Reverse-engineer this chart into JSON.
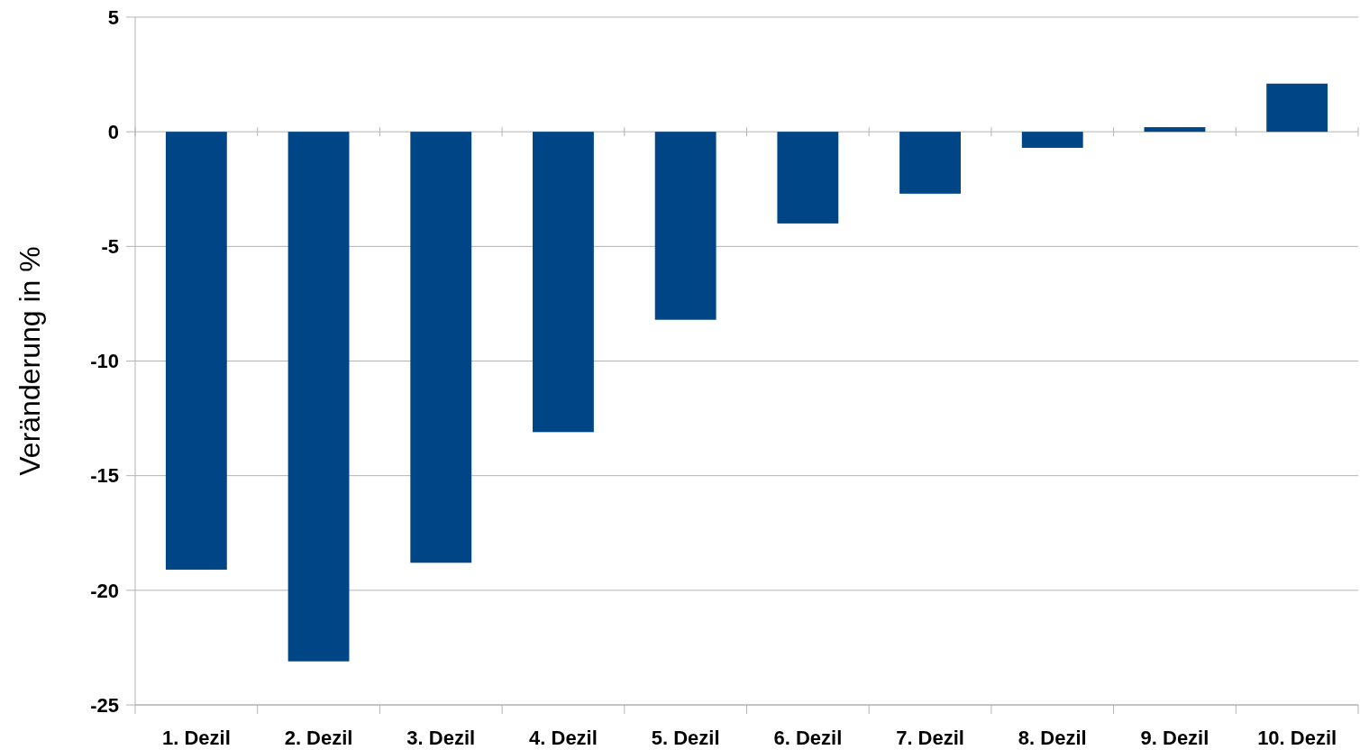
{
  "chart_data": {
    "type": "bar",
    "ylabel": "Veränderung in %",
    "categories": [
      "1. Dezil",
      "2. Dezil",
      "3. Dezil",
      "4. Dezil",
      "5. Dezil",
      "6. Dezil",
      "7. Dezil",
      "8. Dezil",
      "9. Dezil",
      "10. Dezil"
    ],
    "values": [
      -19.1,
      -23.1,
      -18.8,
      -13.1,
      -8.2,
      -4.0,
      -2.7,
      -0.7,
      0.2,
      2.1
    ],
    "color": "#004586",
    "ylim": [
      -25,
      5
    ],
    "yticks": [
      -25,
      -20,
      -15,
      -10,
      -5,
      0,
      5
    ],
    "grid": "y"
  }
}
